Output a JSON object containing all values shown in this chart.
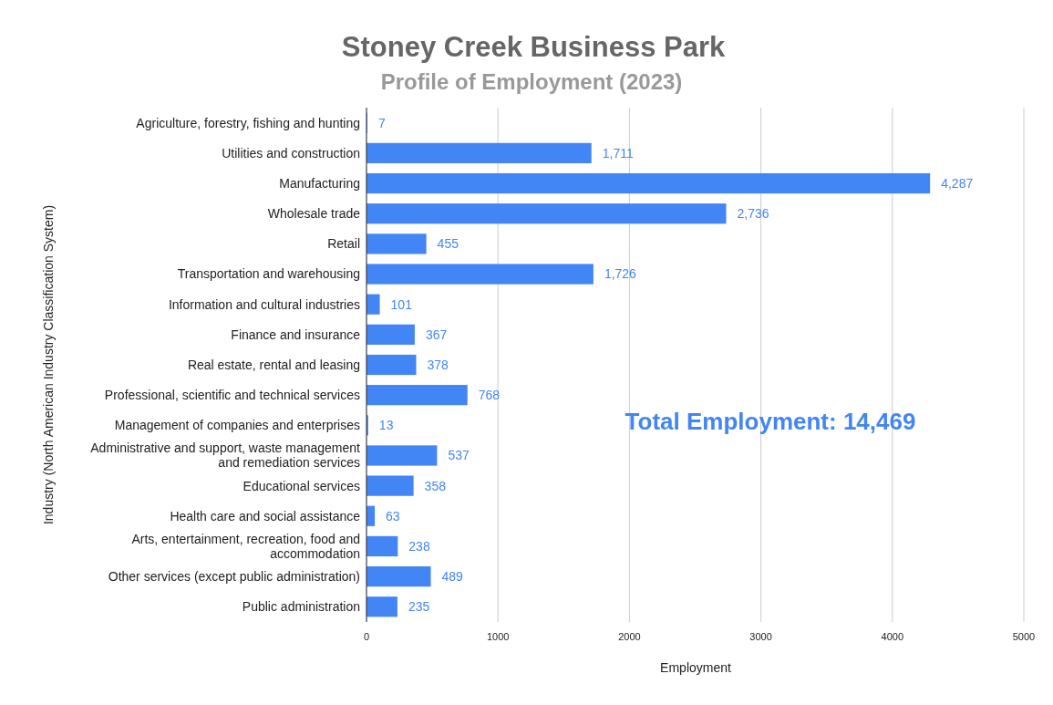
{
  "chart_data": {
    "type": "bar",
    "orientation": "horizontal",
    "title": "Stoney Creek Business Park",
    "subtitle": "Profile of Employment (2023)",
    "xlabel": "Employment",
    "ylabel": "Industry (North American Industry Classification System)",
    "categories": [
      "Agriculture, forestry, fishing and hunting",
      "Utilities and construction",
      "Manufacturing",
      "Wholesale trade",
      "Retail",
      "Transportation and warehousing",
      "Information and cultural industries",
      "Finance and insurance",
      "Real estate, rental and leasing",
      "Professional, scientific and technical services",
      "Management of companies and enterprises",
      "Administrative and support, waste management and remediation services",
      "Educational services",
      "Health care and social assistance",
      "Arts, entertainment, recreation, food and accommodation",
      "Other services (except public administration)",
      "Public administration"
    ],
    "values": [
      7,
      1711,
      4287,
      2736,
      455,
      1726,
      101,
      367,
      378,
      768,
      13,
      537,
      358,
      63,
      238,
      489,
      235
    ],
    "value_labels": [
      "7",
      "1,711",
      "4,287",
      "2,736",
      "455",
      "1,726",
      "101",
      "367",
      "378",
      "768",
      "13",
      "537",
      "358",
      "63",
      "238",
      "489",
      "235"
    ],
    "color": "#4285f4",
    "xlim": [
      0,
      5000
    ],
    "xticks": [
      0,
      1000,
      2000,
      3000,
      4000,
      5000
    ],
    "grid": "x",
    "annotations": [
      "Total Employment: 14,469"
    ]
  }
}
